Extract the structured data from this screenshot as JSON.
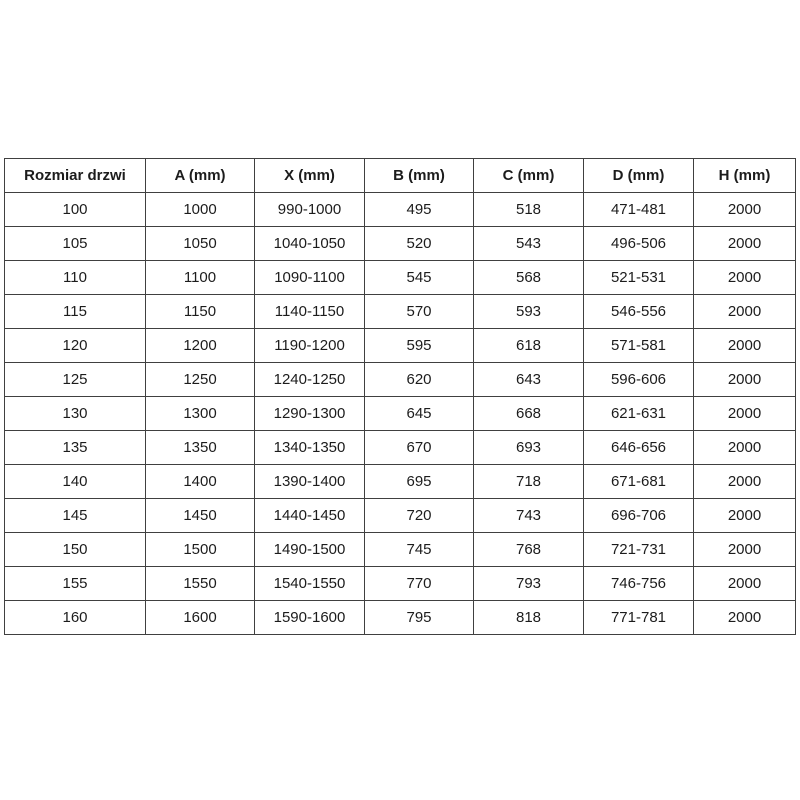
{
  "table": {
    "name": "door-size-dimensions",
    "columns": [
      "Rozmiar drzwi",
      "A (mm)",
      "X (mm)",
      "B (mm)",
      "C (mm)",
      "D (mm)",
      "H (mm)"
    ],
    "rows": [
      [
        "100",
        "1000",
        "990-1000",
        "495",
        "518",
        "471-481",
        "2000"
      ],
      [
        "105",
        "1050",
        "1040-1050",
        "520",
        "543",
        "496-506",
        "2000"
      ],
      [
        "110",
        "1100",
        "1090-1100",
        "545",
        "568",
        "521-531",
        "2000"
      ],
      [
        "115",
        "1150",
        "1140-1150",
        "570",
        "593",
        "546-556",
        "2000"
      ],
      [
        "120",
        "1200",
        "1190-1200",
        "595",
        "618",
        "571-581",
        "2000"
      ],
      [
        "125",
        "1250",
        "1240-1250",
        "620",
        "643",
        "596-606",
        "2000"
      ],
      [
        "130",
        "1300",
        "1290-1300",
        "645",
        "668",
        "621-631",
        "2000"
      ],
      [
        "135",
        "1350",
        "1340-1350",
        "670",
        "693",
        "646-656",
        "2000"
      ],
      [
        "140",
        "1400",
        "1390-1400",
        "695",
        "718",
        "671-681",
        "2000"
      ],
      [
        "145",
        "1450",
        "1440-1450",
        "720",
        "743",
        "696-706",
        "2000"
      ],
      [
        "150",
        "1500",
        "1490-1500",
        "745",
        "768",
        "721-731",
        "2000"
      ],
      [
        "155",
        "1550",
        "1540-1550",
        "770",
        "793",
        "746-756",
        "2000"
      ],
      [
        "160",
        "1600",
        "1590-1600",
        "795",
        "818",
        "771-781",
        "2000"
      ]
    ]
  },
  "colors": {
    "background": "#ffffff",
    "border": "#404040",
    "text": "#1c1c1c"
  }
}
